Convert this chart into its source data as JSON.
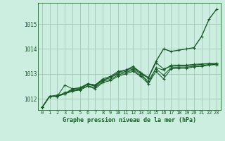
{
  "bg_color": "#cceee0",
  "grid_color": "#aaccbb",
  "line_color": "#1a5c28",
  "marker_color": "#1a5c28",
  "xlabel": "Graphe pression niveau de la mer (hPa)",
  "xticks": [
    0,
    1,
    2,
    3,
    4,
    5,
    6,
    7,
    8,
    9,
    10,
    11,
    12,
    13,
    14,
    15,
    16,
    17,
    18,
    19,
    20,
    21,
    22,
    23
  ],
  "yticks": [
    1012,
    1013,
    1014,
    1015
  ],
  "ylim": [
    1011.55,
    1015.85
  ],
  "xlim": [
    -0.5,
    23.5
  ],
  "series": [
    [
      1011.65,
      1012.1,
      1012.1,
      1012.2,
      1012.4,
      1012.4,
      1012.6,
      1012.55,
      1012.75,
      1012.85,
      1013.05,
      1013.15,
      1013.25,
      1013.05,
      1012.85,
      1013.5,
      1014.0,
      1013.9,
      1013.95,
      1014.0,
      1014.05,
      1014.5,
      1015.2,
      1015.6
    ],
    [
      1011.65,
      1012.1,
      1012.1,
      1012.55,
      1012.4,
      1012.45,
      1012.6,
      1012.55,
      1012.8,
      1012.9,
      1013.1,
      1013.15,
      1013.3,
      1013.05,
      1012.6,
      1013.25,
      1013.15,
      1013.35,
      1013.35,
      1013.35,
      1013.38,
      1013.4,
      1013.42,
      1013.42
    ],
    [
      1011.65,
      1012.1,
      1012.15,
      1012.2,
      1012.35,
      1012.4,
      1012.58,
      1012.5,
      1012.75,
      1012.85,
      1013.0,
      1013.1,
      1013.2,
      1013.0,
      1012.83,
      1013.45,
      1013.2,
      1013.3,
      1013.32,
      1013.32,
      1013.35,
      1013.38,
      1013.4,
      1013.42
    ],
    [
      1011.65,
      1012.1,
      1012.1,
      1012.25,
      1012.3,
      1012.38,
      1012.52,
      1012.45,
      1012.7,
      1012.78,
      1012.95,
      1013.05,
      1013.15,
      1012.93,
      1012.72,
      1013.2,
      1012.95,
      1013.25,
      1013.27,
      1013.27,
      1013.3,
      1013.33,
      1013.37,
      1013.38
    ],
    [
      1011.65,
      1012.1,
      1012.1,
      1012.2,
      1012.3,
      1012.35,
      1012.5,
      1012.4,
      1012.65,
      1012.73,
      1012.9,
      1013.0,
      1013.1,
      1012.9,
      1012.6,
      1013.1,
      1012.8,
      1013.2,
      1013.22,
      1013.22,
      1013.28,
      1013.3,
      1013.35,
      1013.37
    ]
  ]
}
